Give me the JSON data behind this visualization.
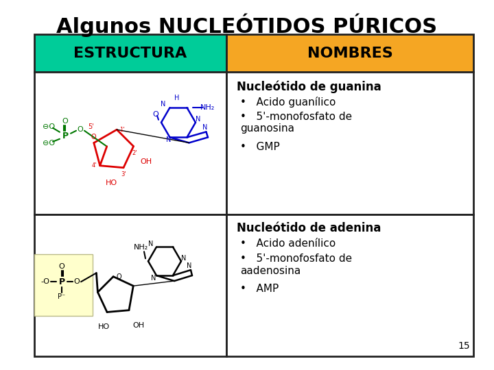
{
  "title": "Algunos NUCLEÓTIDOS PÚRICOS",
  "title_fontsize": 22,
  "col1_header": "ESTRUCTURA",
  "col2_header": "NOMBRES",
  "col1_header_color": "#00CC99",
  "col2_header_color": "#F5A623",
  "header_text_color": "#000000",
  "header_fontsize": 16,
  "background_color": "#FFFFFF",
  "border_color": "#222222",
  "row1_names_title": "Nucleótido de guanina",
  "row1_bullet1": "Acido guanílico",
  "row1_bullet2": "5'-monofosfato de\nguanosina",
  "row1_bullet3": "GMP",
  "row2_names_title": "Nucleótido de adenina",
  "row2_bullet1": "Acido adenílico",
  "row2_bullet2": "5'-monofosfato de\naadenosina",
  "row2_bullet3": "AMP",
  "names_title_fontsize": 12,
  "bullet_fontsize": 11,
  "page_number": "15",
  "guanine_color": "#0000CC",
  "sugar_color": "#DD0000",
  "phosphate_color": "#007700"
}
